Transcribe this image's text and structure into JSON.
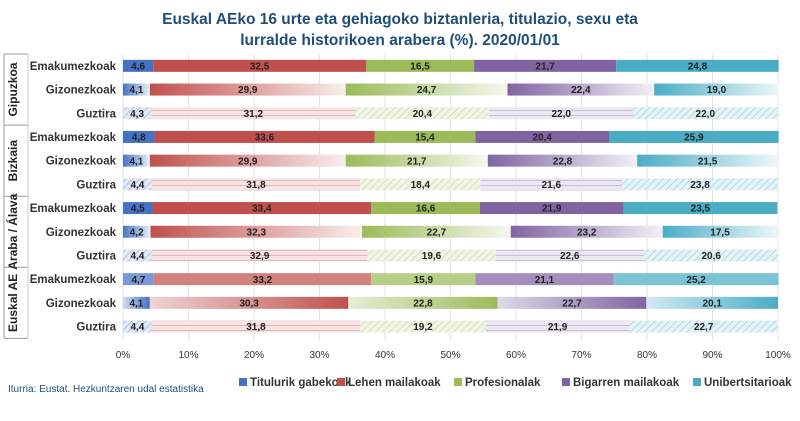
{
  "chart_data": {
    "type": "bar",
    "orientation": "horizontal",
    "stacked": true,
    "percent_stacked": true,
    "title_lines": [
      "Euskal AEko 16 urte eta gehiagoko biztanleria, titulazio, sexu eta",
      "lurralde historikoen arabera (%). 2020/01/01"
    ],
    "source": "Iturria: Eustat. Hezkuntzaren udal estatistika",
    "xlim": [
      0,
      100
    ],
    "x_ticks": [
      "0%",
      "10%",
      "20%",
      "30%",
      "40%",
      "50%",
      "60%",
      "70%",
      "80%",
      "90%",
      "100%"
    ],
    "legend_position": "bottom",
    "series": [
      {
        "name": "Titulurik gabekoak",
        "color": "#4472c4"
      },
      {
        "name": "Lehen mailakoak",
        "color": "#c0504d"
      },
      {
        "name": "Profesionalak",
        "color": "#9bbb59"
      },
      {
        "name": "Bigarren mailakoak",
        "color": "#8064a2"
      },
      {
        "name": "Unibertsitarioak",
        "color": "#4bacc6"
      }
    ],
    "groups": [
      {
        "name": "Gipuzkoa",
        "rows": [
          {
            "label": "Emakumezkoak",
            "style": "solid",
            "values": [
              4.6,
              32.5,
              16.5,
              21.7,
              24.8
            ],
            "labels": [
              "4,6",
              "32,5",
              "16,5",
              "21,7",
              "24,8"
            ]
          },
          {
            "label": "Gizonezkoak",
            "style": "gradient",
            "values": [
              4.1,
              29.9,
              24.7,
              22.4,
              19.0
            ],
            "labels": [
              "4,1",
              "29,9",
              "24,7",
              "22,4",
              "19,0"
            ]
          },
          {
            "label": "Guztira",
            "style": "pattern",
            "values": [
              4.3,
              31.2,
              20.4,
              22.0,
              22.0
            ],
            "labels": [
              "4,3",
              "31,2",
              "20,4",
              "22,0",
              "22,0"
            ]
          }
        ]
      },
      {
        "name": "Bizkaia",
        "rows": [
          {
            "label": "Emakumezkoak",
            "style": "solid",
            "values": [
              4.8,
              33.6,
              15.4,
              20.4,
              25.9
            ],
            "labels": [
              "4,8",
              "33,6",
              "15,4",
              "20,4",
              "25,9"
            ]
          },
          {
            "label": "Gizonezkoak",
            "style": "gradient",
            "values": [
              4.1,
              29.9,
              21.7,
              22.8,
              21.5
            ],
            "labels": [
              "4,1",
              "29,9",
              "21,7",
              "22,8",
              "21,5"
            ]
          },
          {
            "label": "Guztira",
            "style": "pattern",
            "values": [
              4.4,
              31.8,
              18.4,
              21.6,
              23.8
            ],
            "labels": [
              "4,4",
              "31,8",
              "18,4",
              "21,6",
              "23,8"
            ]
          }
        ]
      },
      {
        "name": "Araba / Álava",
        "rows": [
          {
            "label": "Emakumezkoak",
            "style": "solid",
            "values": [
              4.5,
              33.4,
              16.6,
              21.9,
              23.5
            ],
            "labels": [
              "4,5",
              "33,4",
              "16,6",
              "21,9",
              "23,5"
            ]
          },
          {
            "label": "Gizonezkoak",
            "style": "gradient",
            "values": [
              4.2,
              32.3,
              22.7,
              23.2,
              17.5
            ],
            "labels": [
              "4,2",
              "32,3",
              "22,7",
              "23,2",
              "17,5"
            ]
          },
          {
            "label": "Guztira",
            "style": "pattern",
            "values": [
              4.4,
              32.9,
              19.6,
              22.6,
              20.6
            ],
            "labels": [
              "4,4",
              "32,9",
              "19,6",
              "22,6",
              "20,6"
            ]
          }
        ]
      },
      {
        "name": "Euskal AE",
        "rows": [
          {
            "label": "Emakumezkoak",
            "style": "light",
            "values": [
              4.7,
              33.2,
              15.9,
              21.1,
              25.2
            ],
            "labels": [
              "4,7",
              "33,2",
              "15,9",
              "21,1",
              "25,2"
            ]
          },
          {
            "label": "Gizonezkoak",
            "style": "gradient-rev",
            "values": [
              4.1,
              30.3,
              22.8,
              22.7,
              20.1
            ],
            "labels": [
              "4,1",
              "30,3",
              "22,8",
              "22,7",
              "20,1"
            ]
          },
          {
            "label": "Guztira",
            "style": "pattern",
            "values": [
              4.4,
              31.8,
              19.2,
              21.9,
              22.7
            ],
            "labels": [
              "4,4",
              "31,8",
              "19,2",
              "21,9",
              "22,7"
            ]
          }
        ]
      }
    ]
  }
}
